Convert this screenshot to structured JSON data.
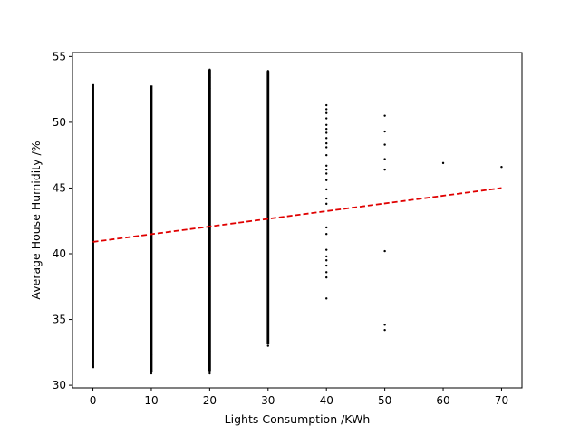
{
  "chart_data": {
    "type": "scatter",
    "title": "",
    "xlabel": "Lights Consumption /KWh",
    "ylabel": "Average House Humidity /%",
    "xlim": [
      -3.5,
      73.5
    ],
    "ylim": [
      29.8,
      55.3
    ],
    "x_ticks": [
      0,
      10,
      20,
      30,
      40,
      50,
      60,
      70
    ],
    "y_ticks": [
      30,
      35,
      40,
      45,
      50,
      55
    ],
    "grid": false,
    "legend": "none",
    "point_color": "#000000",
    "trend_color": "#e00000",
    "columns": [
      {
        "x": 0,
        "ymin": 31.3,
        "ymax": 52.9,
        "outliers": [
          31.4,
          31.8,
          52.8
        ]
      },
      {
        "x": 10,
        "ymin": 31.0,
        "ymax": 52.8,
        "outliers": [
          30.9,
          31.1,
          32.3,
          52.7,
          52.2
        ]
      },
      {
        "x": 20,
        "ymin": 31.1,
        "ymax": 54.0,
        "outliers": [
          30.9,
          31.1,
          32.6,
          54.0,
          53.4,
          53.2,
          52.6
        ]
      },
      {
        "x": 30,
        "ymin": 33.1,
        "ymax": 53.9,
        "outliers": [
          33.0,
          33.2,
          34.8,
          53.9,
          52.7,
          51.9
        ]
      }
    ],
    "points": [
      {
        "x": 40,
        "y": 51.3
      },
      {
        "x": 40,
        "y": 51.0
      },
      {
        "x": 40,
        "y": 50.7
      },
      {
        "x": 40,
        "y": 50.3
      },
      {
        "x": 40,
        "y": 49.8
      },
      {
        "x": 40,
        "y": 49.5
      },
      {
        "x": 40,
        "y": 49.2
      },
      {
        "x": 40,
        "y": 48.8
      },
      {
        "x": 40,
        "y": 48.4
      },
      {
        "x": 40,
        "y": 48.1
      },
      {
        "x": 40,
        "y": 47.5
      },
      {
        "x": 40,
        "y": 46.7
      },
      {
        "x": 40,
        "y": 46.4
      },
      {
        "x": 40,
        "y": 46.1
      },
      {
        "x": 40,
        "y": 45.6
      },
      {
        "x": 40,
        "y": 44.9
      },
      {
        "x": 40,
        "y": 44.2
      },
      {
        "x": 40,
        "y": 43.8
      },
      {
        "x": 40,
        "y": 42.0
      },
      {
        "x": 40,
        "y": 41.5
      },
      {
        "x": 40,
        "y": 40.3
      },
      {
        "x": 40,
        "y": 39.8
      },
      {
        "x": 40,
        "y": 39.5
      },
      {
        "x": 40,
        "y": 39.1
      },
      {
        "x": 40,
        "y": 38.6
      },
      {
        "x": 40,
        "y": 38.2
      },
      {
        "x": 40,
        "y": 36.6
      },
      {
        "x": 50,
        "y": 50.5
      },
      {
        "x": 50,
        "y": 49.3
      },
      {
        "x": 50,
        "y": 48.3
      },
      {
        "x": 50,
        "y": 47.2
      },
      {
        "x": 50,
        "y": 46.4
      },
      {
        "x": 50,
        "y": 40.2
      },
      {
        "x": 50,
        "y": 34.6
      },
      {
        "x": 50,
        "y": 34.2
      },
      {
        "x": 60,
        "y": 46.9
      },
      {
        "x": 70,
        "y": 46.6
      }
    ],
    "trendline": {
      "x": [
        0,
        70
      ],
      "y": [
        40.9,
        45.0
      ],
      "style": "dashed"
    }
  }
}
